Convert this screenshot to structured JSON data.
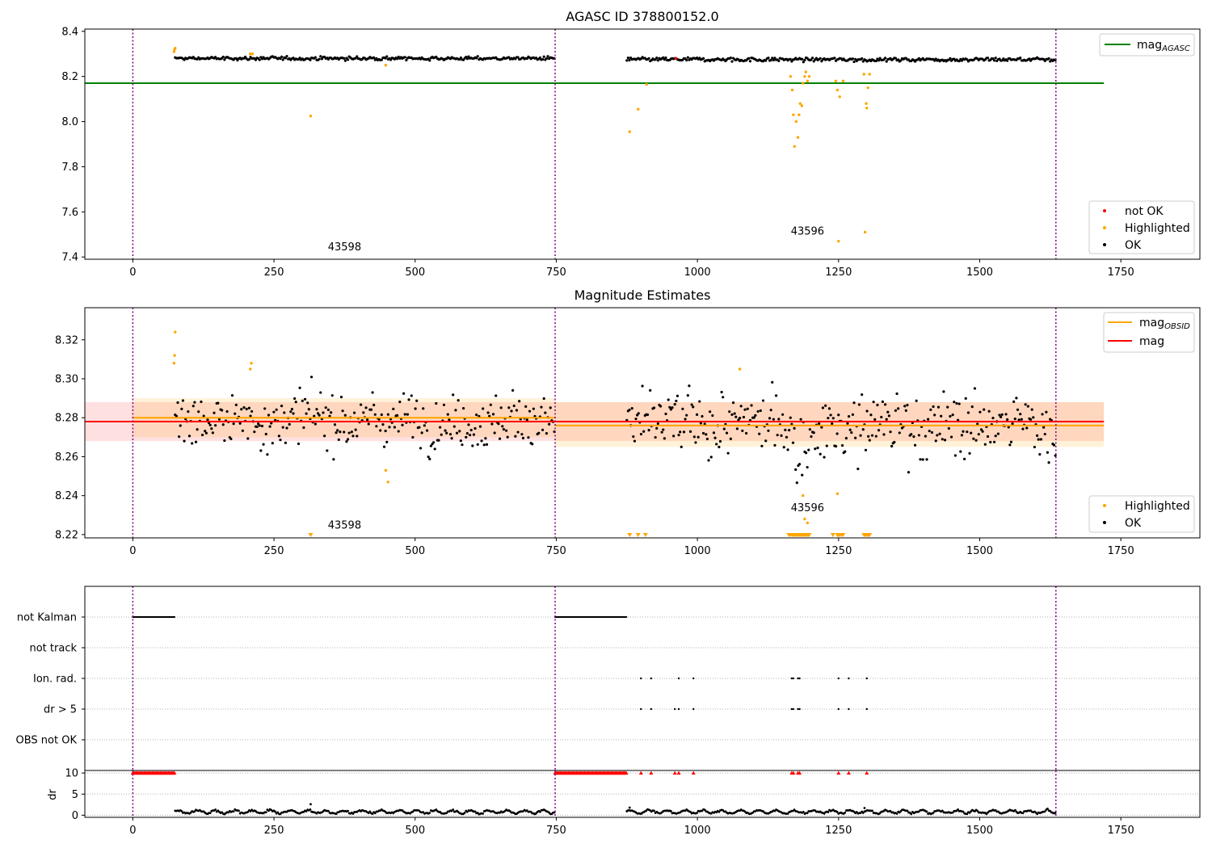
{
  "figure": {
    "title": "AGASC ID 378800152.0",
    "colors": {
      "ok": "#000000",
      "highlighted": "#ffa500",
      "not_ok": "#ff0000",
      "agasc_line": "#008000",
      "mag_line": "#ff0000",
      "obsid_line": "#ffa500",
      "obs_separator": "#800080"
    }
  },
  "chart_data": [
    {
      "type": "scatter",
      "name": "top",
      "title": "AGASC ID 378800152.0",
      "xlim": [
        -85,
        1890
      ],
      "ylim": [
        7.39,
        8.41
      ],
      "xticks": [
        0,
        250,
        500,
        750,
        1000,
        1250,
        1500,
        1750
      ],
      "yticks": [
        7.4,
        7.6,
        7.8,
        8.0,
        8.2,
        8.4
      ],
      "obs_separators": [
        0,
        748,
        1635
      ],
      "obs_labels": [
        {
          "x": 375,
          "y": 7.43,
          "text": "43598"
        },
        {
          "x": 1195,
          "y": 7.5,
          "text": "43596"
        }
      ],
      "segments": [
        {
          "x0": 75,
          "x1": 748,
          "base": 8.28,
          "noise": 0.007,
          "step": 2.3
        },
        {
          "x0": 875,
          "x1": 1635,
          "base": 8.275,
          "noise": 0.008,
          "step": 2.3
        }
      ],
      "mag_agasc": {
        "value": 8.17,
        "x0": -85,
        "x1": 1720
      },
      "highlighted_points": [
        [
          73,
          8.31
        ],
        [
          74,
          8.32
        ],
        [
          75,
          8.325
        ],
        [
          208,
          8.3
        ],
        [
          212,
          8.3
        ],
        [
          315,
          8.025
        ],
        [
          448,
          8.25
        ],
        [
          880,
          7.955
        ],
        [
          895,
          8.055
        ],
        [
          910,
          8.165
        ],
        [
          1165,
          8.2
        ],
        [
          1168,
          8.14
        ],
        [
          1170,
          8.03
        ],
        [
          1172,
          7.89
        ],
        [
          1175,
          8.0
        ],
        [
          1178,
          7.93
        ],
        [
          1180,
          8.03
        ],
        [
          1182,
          8.08
        ],
        [
          1185,
          8.07
        ],
        [
          1187,
          8.17
        ],
        [
          1190,
          8.2
        ],
        [
          1192,
          8.22
        ],
        [
          1195,
          8.18
        ],
        [
          1198,
          8.2
        ],
        [
          1245,
          8.18
        ],
        [
          1248,
          8.14
        ],
        [
          1250,
          7.47
        ],
        [
          1252,
          8.11
        ],
        [
          1258,
          8.18
        ],
        [
          1295,
          8.21
        ],
        [
          1297,
          7.51
        ],
        [
          1299,
          8.08
        ],
        [
          1300,
          8.06
        ],
        [
          1302,
          8.15
        ],
        [
          1305,
          8.21
        ]
      ],
      "not_ok_points": [
        [
          962,
          8.28
        ]
      ],
      "legend_top": {
        "label": "mag",
        "subscript": "AGASC"
      },
      "legend_bottom": [
        "not OK",
        "Highlighted",
        "OK"
      ]
    },
    {
      "type": "scatter",
      "name": "middle",
      "title": "Magnitude Estimates",
      "xlim": [
        -85,
        1890
      ],
      "ylim": [
        8.2183,
        8.3365
      ],
      "xticks": [
        0,
        250,
        500,
        750,
        1000,
        1250,
        1500,
        1750
      ],
      "yticks": [
        8.22,
        8.24,
        8.26,
        8.28,
        8.3,
        8.32
      ],
      "obs_separators": [
        0,
        748,
        1635
      ],
      "obs_labels": [
        {
          "x": 375,
          "y": 8.223,
          "text": "43598"
        },
        {
          "x": 1195,
          "y": 8.232,
          "text": "43596"
        }
      ],
      "segments": [
        {
          "x0": 75,
          "x1": 748,
          "base": 8.279,
          "noise": 0.008,
          "step": 2.3
        },
        {
          "x0": 875,
          "x1": 1635,
          "base": 8.276,
          "noise": 0.01,
          "step": 2.3
        }
      ],
      "mag": {
        "value": 8.278,
        "x0": -85,
        "x1": 1720,
        "band": [
          8.268,
          8.288
        ]
      },
      "mag_obsid": [
        {
          "x0": 0,
          "x1": 748,
          "value": 8.28,
          "band": [
            8.27,
            8.29
          ]
        },
        {
          "x0": 748,
          "x1": 1720,
          "value": 8.276,
          "band": [
            8.265,
            8.288
          ]
        }
      ],
      "highlighted_points": [
        [
          73,
          8.308
        ],
        [
          74,
          8.312
        ],
        [
          75,
          8.324
        ],
        [
          208,
          8.305
        ],
        [
          210,
          8.308
        ],
        [
          448,
          8.253
        ],
        [
          452,
          8.247
        ],
        [
          1075,
          8.305
        ],
        [
          1187,
          8.24
        ],
        [
          1190,
          8.228
        ],
        [
          1195,
          8.226
        ],
        [
          1248,
          8.241
        ]
      ],
      "highlighted_clipped_x": [
        315,
        880,
        895,
        908,
        1162,
        1165,
        1168,
        1170,
        1172,
        1174,
        1176,
        1178,
        1180,
        1182,
        1184,
        1186,
        1188,
        1190,
        1192,
        1194,
        1196,
        1198,
        1240,
        1248,
        1250,
        1252,
        1255,
        1258,
        1295,
        1297,
        1299,
        1301,
        1303,
        1305
      ],
      "legend_top": [
        {
          "label": "mag",
          "subscript": "OBSID"
        },
        {
          "label": "mag"
        }
      ],
      "legend_bottom": [
        "Highlighted",
        "OK"
      ]
    },
    {
      "type": "scatter",
      "name": "flags",
      "xlim": [
        -85,
        1890
      ],
      "categories": [
        "not Kalman",
        "not track",
        "Ion. rad.",
        "dr > 5",
        "OBS not OK"
      ],
      "obs_separators": [
        0,
        748,
        1635
      ],
      "not_kalman_ranges": [
        [
          0,
          75
        ],
        [
          748,
          875
        ]
      ],
      "ion_rad_x": [
        900,
        918,
        967,
        993,
        1167,
        1170,
        1178,
        1181,
        1250,
        1268,
        1300
      ],
      "dr_gt5_x": [
        900,
        918,
        960,
        967,
        993,
        1167,
        1170,
        1178,
        1181,
        1250,
        1268,
        1300
      ]
    },
    {
      "type": "scatter",
      "name": "dr",
      "ylabel": "dr",
      "xlim": [
        -85,
        1890
      ],
      "ylim": [
        -0.5,
        10.6
      ],
      "xticks": [
        0,
        250,
        500,
        750,
        1000,
        1250,
        1500,
        1750
      ],
      "yticks": [
        0,
        5,
        10
      ],
      "obs_separators": [
        0,
        748,
        1635
      ],
      "clipped_ranges": [
        [
          0,
          75
        ],
        [
          748,
          875
        ]
      ],
      "clipped_x": [
        900,
        918,
        960,
        967,
        993,
        1167,
        1170,
        1178,
        1181,
        1250,
        1268,
        1300
      ],
      "segments": [
        {
          "x0": 75,
          "x1": 748,
          "base": 0.8,
          "noise": 0.35,
          "step": 2.3
        },
        {
          "x0": 875,
          "x1": 1635,
          "base": 0.8,
          "noise": 0.35,
          "step": 2.3
        }
      ],
      "outliers": [
        [
          315,
          2.6
        ],
        [
          880,
          1.8
        ],
        [
          1296,
          1.7
        ]
      ]
    }
  ]
}
